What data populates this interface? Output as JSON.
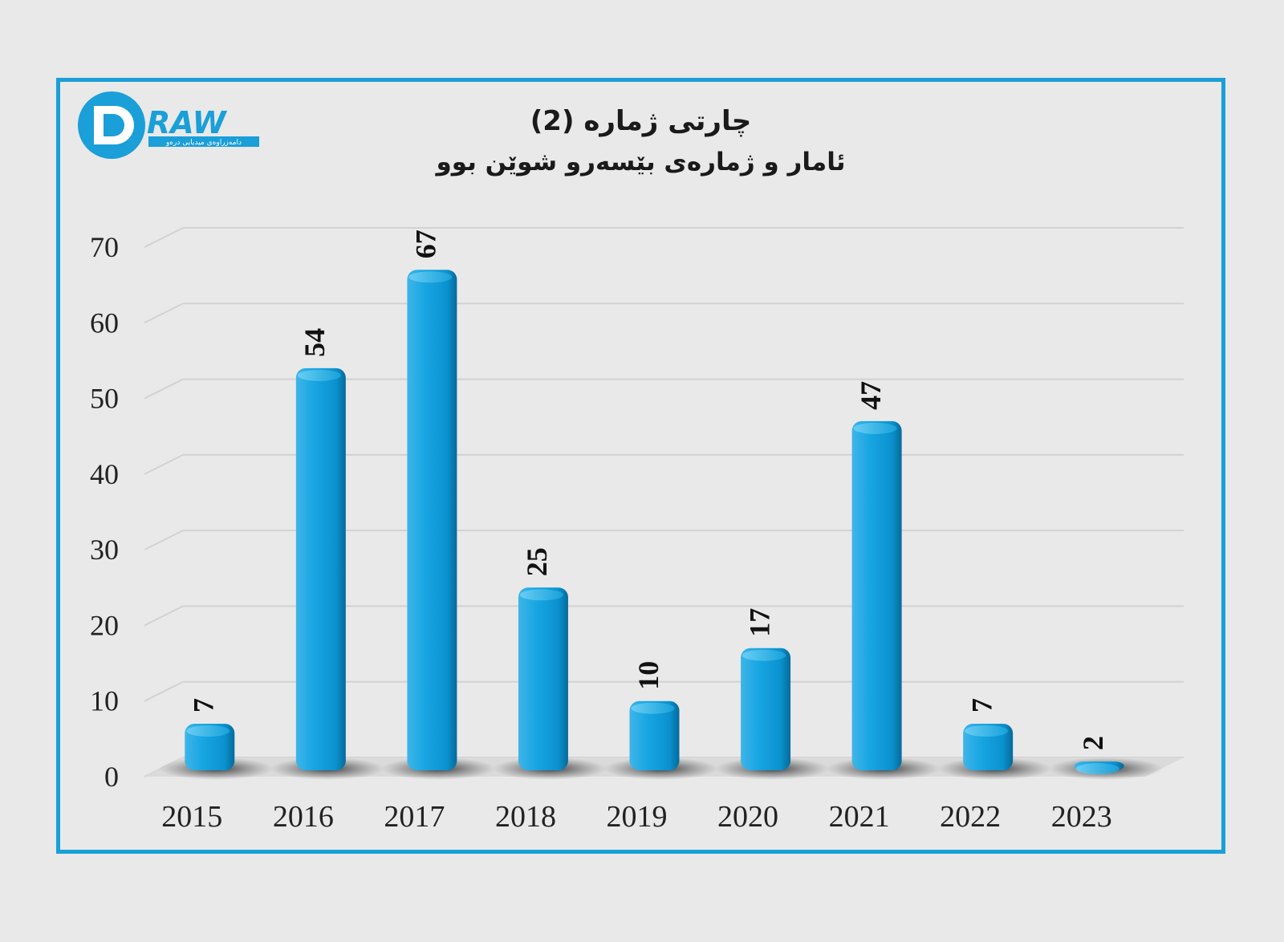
{
  "logo": {
    "brand_text": "RAW",
    "tagline": "دامەزراوەی میدیایی درەو"
  },
  "chart_data": {
    "type": "bar",
    "title": "چارتی ژمارە (2)",
    "subtitle": "ئامار و ژمارەی بێسەرو شوێن بوو",
    "categories": [
      "2015",
      "2016",
      "2017",
      "2018",
      "2019",
      "2020",
      "2021",
      "2022",
      "2023"
    ],
    "values": [
      7,
      54,
      67,
      25,
      10,
      17,
      47,
      7,
      2
    ],
    "ylim": [
      0,
      70
    ],
    "yticks": [
      0,
      10,
      20,
      30,
      40,
      50,
      60,
      70
    ],
    "grid": true,
    "data_labels": true,
    "colors": {
      "bar": "#0a9ad9",
      "bar_light": "#4cc0ef",
      "bar_dark": "#066a9a",
      "frame": "#1a9fd8",
      "background": "#e9e9e9"
    }
  }
}
